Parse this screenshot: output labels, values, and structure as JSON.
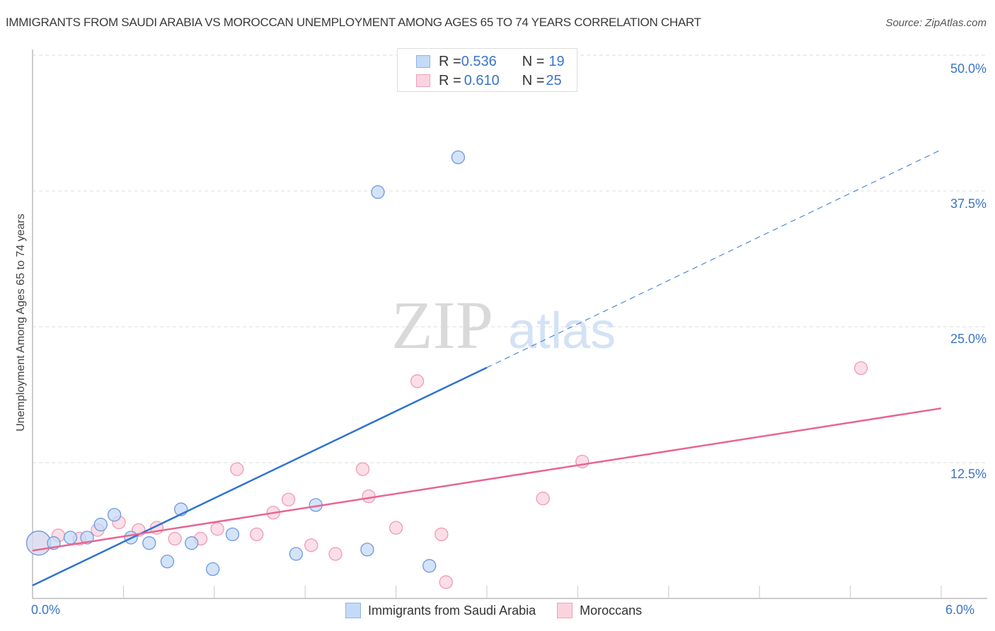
{
  "header": {
    "title": "IMMIGRANTS FROM SAUDI ARABIA VS MOROCCAN UNEMPLOYMENT AMONG AGES 65 TO 74 YEARS CORRELATION CHART",
    "source": "Source: ZipAtlas.com"
  },
  "watermark": {
    "zip": "ZIP",
    "atlas": "atlas"
  },
  "axes": {
    "ylabel": "Unemployment Among Ages 65 to 74 years",
    "yticks": [
      "50.0%",
      "37.5%",
      "25.0%",
      "12.5%"
    ],
    "xticks": [
      "0.0%",
      "6.0%"
    ]
  },
  "legend_top": {
    "rows": [
      {
        "r_label": "R = ",
        "r_value": "0.536",
        "n_label": "N = ",
        "n_value": "19"
      },
      {
        "r_label": "R = ",
        "r_value": "0.610",
        "n_label": "N = ",
        "n_value": "25"
      }
    ]
  },
  "legend_bottom": {
    "items": [
      {
        "label": "Immigrants from Saudi Arabia"
      },
      {
        "label": "Moroccans"
      }
    ]
  },
  "colors": {
    "blue_line": "#2f73d2",
    "blue_fill": "#c5daf6",
    "blue_stroke": "#6b9ae0",
    "pink_line": "#e8658f",
    "pink_fill": "#fbd3df",
    "pink_stroke": "#ee9ab5",
    "tick_text": "#3a74c9"
  },
  "chart_data": {
    "type": "scatter",
    "title": "IMMIGRANTS FROM SAUDI ARABIA VS MOROCCAN UNEMPLOYMENT AMONG AGES 65 TO 74 YEARS CORRELATION CHART",
    "xlabel": "",
    "ylabel": "Unemployment Among Ages 65 to 74 years",
    "xlim": [
      0,
      6.0
    ],
    "ylim": [
      0,
      50.0
    ],
    "x_unit": "%",
    "y_unit": "%",
    "yticks": [
      12.5,
      25.0,
      37.5,
      50.0
    ],
    "xticks": [
      0.0,
      6.0
    ],
    "grid": "horizontal dashed",
    "legend_position": "bottom",
    "series": [
      {
        "name": "Immigrants from Saudi Arabia",
        "R": 0.536,
        "N": 19,
        "points": [
          [
            0.04,
            5.1
          ],
          [
            0.14,
            5.1
          ],
          [
            0.25,
            5.6
          ],
          [
            0.36,
            5.6
          ],
          [
            0.45,
            6.8
          ],
          [
            0.54,
            7.7
          ],
          [
            0.65,
            5.6
          ],
          [
            0.77,
            5.1
          ],
          [
            0.89,
            3.4
          ],
          [
            0.98,
            8.2
          ],
          [
            1.05,
            5.1
          ],
          [
            1.19,
            2.7
          ],
          [
            1.32,
            5.9
          ],
          [
            1.74,
            4.1
          ],
          [
            1.87,
            8.6
          ],
          [
            2.21,
            4.5
          ],
          [
            2.28,
            37.4
          ],
          [
            2.62,
            3.0
          ],
          [
            2.81,
            40.6
          ]
        ],
        "trendline": {
          "x0": 0.0,
          "y0": 1.2,
          "x1": 6.0,
          "y1": 41.3,
          "solid_until_x": 3.0
        }
      },
      {
        "name": "Moroccans",
        "R": 0.61,
        "N": 25,
        "points": [
          [
            0.04,
            5.1
          ],
          [
            0.17,
            5.8
          ],
          [
            0.31,
            5.5
          ],
          [
            0.43,
            6.3
          ],
          [
            0.57,
            7.0
          ],
          [
            0.7,
            6.3
          ],
          [
            0.82,
            6.5
          ],
          [
            0.94,
            5.5
          ],
          [
            1.11,
            5.5
          ],
          [
            1.22,
            6.4
          ],
          [
            1.35,
            11.9
          ],
          [
            1.48,
            5.9
          ],
          [
            1.59,
            7.9
          ],
          [
            1.69,
            9.1
          ],
          [
            1.84,
            4.9
          ],
          [
            2.0,
            4.1
          ],
          [
            2.18,
            11.9
          ],
          [
            2.22,
            9.4
          ],
          [
            2.4,
            6.5
          ],
          [
            2.54,
            20.0
          ],
          [
            2.7,
            5.9
          ],
          [
            2.73,
            1.5
          ],
          [
            3.37,
            9.2
          ],
          [
            3.63,
            12.6
          ],
          [
            5.47,
            21.2
          ]
        ],
        "trendline": {
          "x0": 0.0,
          "y0": 4.4,
          "x1": 6.0,
          "y1": 17.5
        }
      }
    ]
  }
}
